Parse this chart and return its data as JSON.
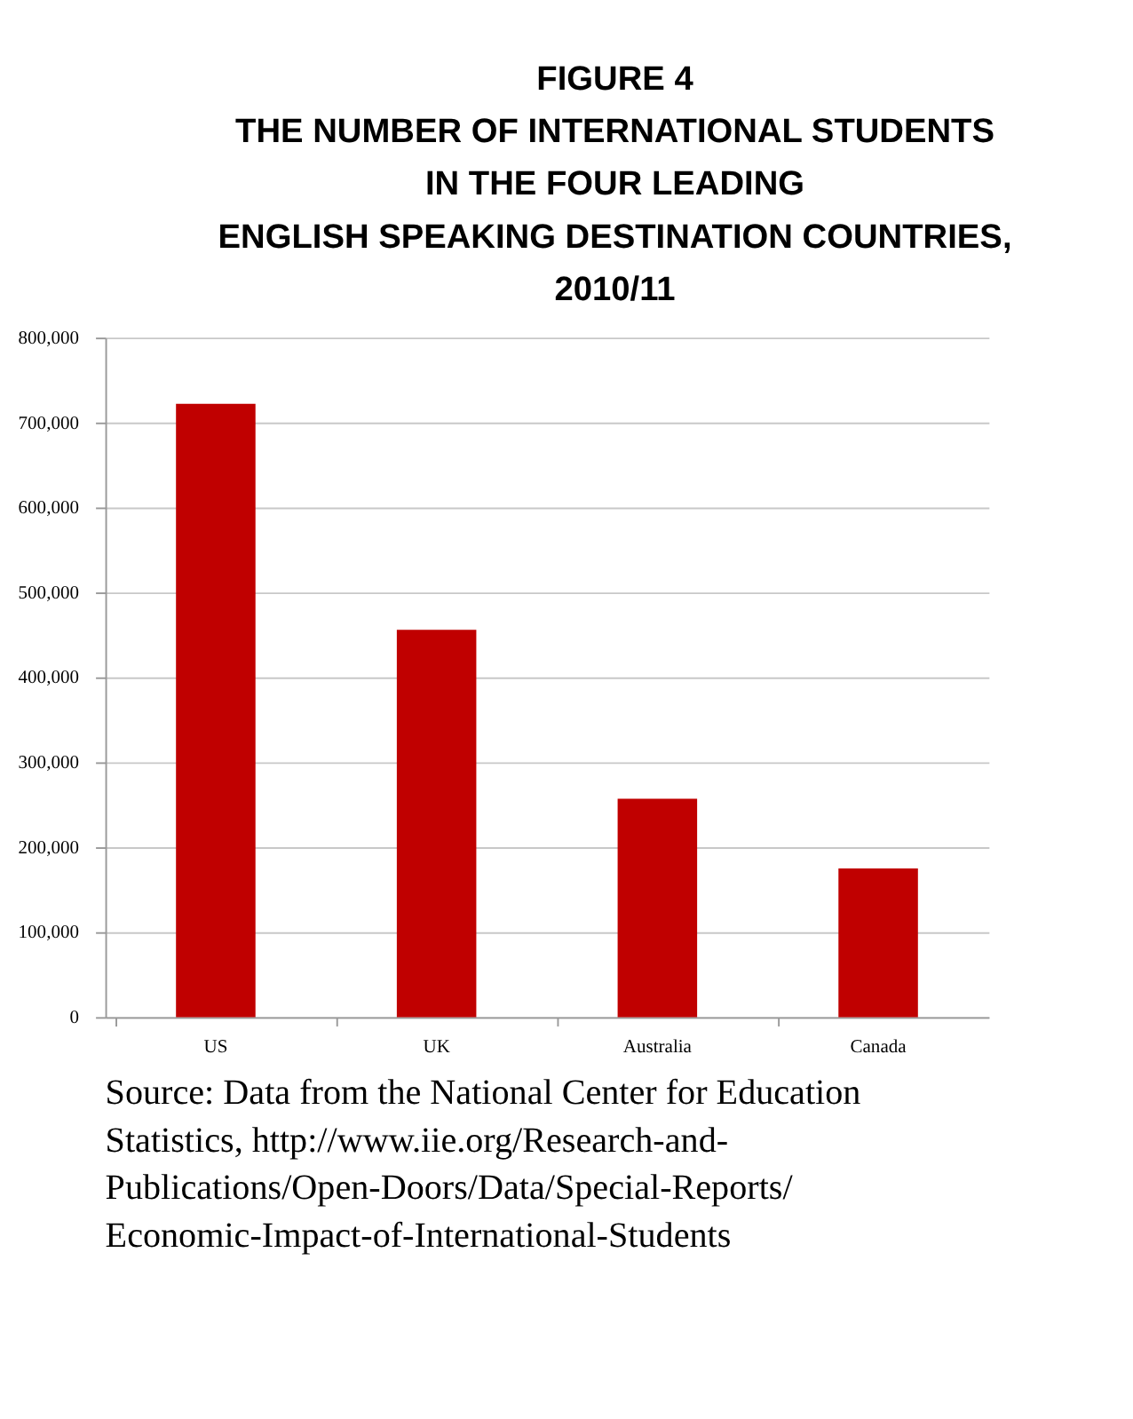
{
  "chart_data": {
    "type": "bar",
    "title": "FIGURE 4\nTHE NUMBER OF INTERNATIONAL STUDENTS\nIN THE FOUR LEADING\nENGLISH SPEAKING DESTINATION COUNTRIES,\n2010/11",
    "categories": [
      "US",
      "UK",
      "Australia",
      "Canada"
    ],
    "values": [
      722000,
      456000,
      257000,
      175000
    ],
    "color": "#c00000",
    "ylim": [
      0,
      800000
    ],
    "yticks": [
      {
        "value": 0,
        "label": "0"
      },
      {
        "value": 100000,
        "label": "100,000"
      },
      {
        "value": 200000,
        "label": "200,000"
      },
      {
        "value": 300000,
        "label": "300,000"
      },
      {
        "value": 400000,
        "label": "400,000"
      },
      {
        "value": 500000,
        "label": "500,000"
      },
      {
        "value": 600000,
        "label": "600,000"
      },
      {
        "value": 700000,
        "label": "700,000"
      },
      {
        "value": 800000,
        "label": "800,000"
      }
    ],
    "grid": "y",
    "annotations": [
      "Source: Data from the National Center for Education Statistics, http://www.iie.org/Research-and-Publications/Open-Doors/Data/Special-Reports/Economic-Impact-of-International-Students"
    ]
  }
}
